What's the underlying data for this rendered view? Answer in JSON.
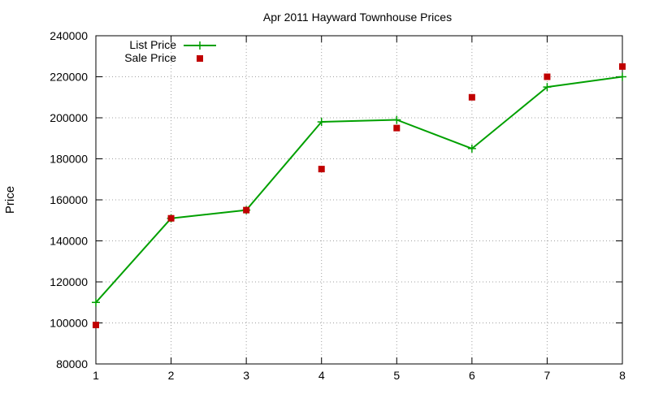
{
  "chart_data": {
    "type": "line",
    "title": "Apr 2011 Hayward Townhouse Prices",
    "xlabel": "",
    "ylabel": "Price",
    "x": [
      1,
      2,
      3,
      4,
      5,
      6,
      7,
      8
    ],
    "xlim": [
      1,
      8
    ],
    "ylim": [
      80000,
      240000
    ],
    "x_ticks": [
      "1",
      "2",
      "3",
      "4",
      "5",
      "6",
      "7",
      "8"
    ],
    "y_ticks": [
      "80000",
      "100000",
      "120000",
      "140000",
      "160000",
      "180000",
      "200000",
      "220000",
      "240000"
    ],
    "grid": true,
    "legend_position": "top-left",
    "series": [
      {
        "name": "List Price",
        "style": "line-with-plus-markers",
        "color": "#00a000",
        "values": [
          110000,
          151000,
          155000,
          198000,
          199000,
          185000,
          215000,
          220000
        ]
      },
      {
        "name": "Sale Price",
        "style": "square-markers",
        "color": "#c00000",
        "values": [
          99000,
          151000,
          155000,
          175000,
          195000,
          210000,
          220000,
          225000
        ]
      }
    ]
  }
}
